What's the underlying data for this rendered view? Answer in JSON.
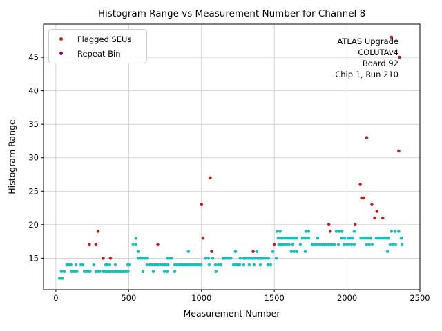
{
  "chart_data": {
    "type": "scatter",
    "title": "Histogram Range vs Measurement Number for Channel 8",
    "xlabel": "Measurement Number",
    "ylabel": "Histogram Range",
    "xlim": [
      -85,
      2500
    ],
    "ylim": [
      10.3,
      49.95
    ],
    "xticks": [
      0,
      500,
      1000,
      1500,
      2000,
      2500
    ],
    "yticks": [
      15,
      20,
      25,
      30,
      35,
      40,
      45
    ],
    "grid": true,
    "legend": {
      "position": "upper left",
      "items": [
        {
          "label": "Flagged SEUs",
          "color": "#b22222"
        },
        {
          "label": "Repeat Bin",
          "color": "#800080"
        }
      ]
    },
    "annotation": {
      "position": "upper right",
      "lines": [
        "ATLAS Upgrade",
        "COLUTAv4",
        "Board 92",
        "Chip 1, Run 210"
      ]
    },
    "colors": {
      "measurements": "#1cbcb8",
      "flagged": "#b22222",
      "repeat": "#800080",
      "grid": "#c9c9c9",
      "spine": "#000000",
      "text": "#000000"
    },
    "series": [
      {
        "name": "Measurements",
        "color": "#1cbcb8",
        "points": [
          [
            25,
            12
          ],
          [
            45,
            12
          ],
          [
            38,
            13
          ],
          [
            57,
            13
          ],
          [
            105,
            13
          ],
          [
            118,
            13
          ],
          [
            131,
            13
          ],
          [
            144,
            13
          ],
          [
            196,
            13
          ],
          [
            209,
            13
          ],
          [
            222,
            13
          ],
          [
            235,
            13
          ],
          [
            275,
            13
          ],
          [
            288,
            13
          ],
          [
            301,
            13
          ],
          [
            327,
            13
          ],
          [
            340,
            13
          ],
          [
            353,
            13
          ],
          [
            366,
            13
          ],
          [
            379,
            13
          ],
          [
            392,
            13
          ],
          [
            405,
            13
          ],
          [
            418,
            13
          ],
          [
            431,
            13
          ],
          [
            444,
            13
          ],
          [
            457,
            13
          ],
          [
            470,
            13
          ],
          [
            483,
            13
          ],
          [
            496,
            13
          ],
          [
            598,
            13
          ],
          [
            669,
            13
          ],
          [
            745,
            13
          ],
          [
            764,
            13
          ],
          [
            816,
            13
          ],
          [
            1100,
            13
          ],
          [
            76,
            14
          ],
          [
            90,
            14
          ],
          [
            104,
            14
          ],
          [
            138,
            14
          ],
          [
            171,
            14
          ],
          [
            185,
            14
          ],
          [
            261,
            14
          ],
          [
            342,
            14
          ],
          [
            351,
            14
          ],
          [
            370,
            14
          ],
          [
            408,
            14
          ],
          [
            493,
            14
          ],
          [
            503,
            14
          ],
          [
            626,
            14
          ],
          [
            645,
            14
          ],
          [
            660,
            14
          ],
          [
            674,
            14
          ],
          [
            688,
            14
          ],
          [
            702,
            14
          ],
          [
            716,
            14
          ],
          [
            730,
            14
          ],
          [
            744,
            14
          ],
          [
            758,
            14
          ],
          [
            770,
            14
          ],
          [
            816,
            14
          ],
          [
            830,
            14
          ],
          [
            844,
            14
          ],
          [
            858,
            14
          ],
          [
            872,
            14
          ],
          [
            886,
            14
          ],
          [
            900,
            14
          ],
          [
            914,
            14
          ],
          [
            928,
            14
          ],
          [
            942,
            14
          ],
          [
            956,
            14
          ],
          [
            970,
            14
          ],
          [
            984,
            14
          ],
          [
            998,
            14
          ],
          [
            1053,
            14
          ],
          [
            1096,
            14
          ],
          [
            1115,
            14
          ],
          [
            1134,
            14
          ],
          [
            1220,
            14
          ],
          [
            1234,
            14
          ],
          [
            1248,
            14
          ],
          [
            1262,
            14
          ],
          [
            1290,
            14
          ],
          [
            1328,
            14
          ],
          [
            1361,
            14
          ],
          [
            1404,
            14
          ],
          [
            1456,
            14
          ],
          [
            1475,
            14
          ],
          [
            565,
            15
          ],
          [
            580,
            15
          ],
          [
            595,
            15
          ],
          [
            610,
            15
          ],
          [
            630,
            15
          ],
          [
            768,
            15
          ],
          [
            781,
            15
          ],
          [
            794,
            15
          ],
          [
            1029,
            15
          ],
          [
            1048,
            15
          ],
          [
            1077,
            15
          ],
          [
            1150,
            15
          ],
          [
            1163,
            15
          ],
          [
            1176,
            15
          ],
          [
            1189,
            15
          ],
          [
            1202,
            15
          ],
          [
            1266,
            15
          ],
          [
            1290,
            15
          ],
          [
            1300,
            15
          ],
          [
            1313,
            15
          ],
          [
            1326,
            15
          ],
          [
            1339,
            15
          ],
          [
            1352,
            15
          ],
          [
            1365,
            15
          ],
          [
            1385,
            15
          ],
          [
            1398,
            15
          ],
          [
            1411,
            15
          ],
          [
            1424,
            15
          ],
          [
            1437,
            15
          ],
          [
            1461,
            15
          ],
          [
            1513,
            15
          ],
          [
            565,
            16
          ],
          [
            910,
            16
          ],
          [
            1233,
            16
          ],
          [
            1380,
            16
          ],
          [
            1490,
            16
          ],
          [
            1617,
            16
          ],
          [
            1636,
            16
          ],
          [
            1655,
            16
          ],
          [
            1712,
            16
          ],
          [
            2277,
            16
          ],
          [
            530,
            17
          ],
          [
            550,
            17
          ],
          [
            1532,
            17
          ],
          [
            1546,
            17
          ],
          [
            1560,
            17
          ],
          [
            1574,
            17
          ],
          [
            1588,
            17
          ],
          [
            1602,
            17
          ],
          [
            1627,
            17
          ],
          [
            1679,
            17
          ],
          [
            1760,
            17
          ],
          [
            1774,
            17
          ],
          [
            1788,
            17
          ],
          [
            1802,
            17
          ],
          [
            1816,
            17
          ],
          [
            1830,
            17
          ],
          [
            1844,
            17
          ],
          [
            1858,
            17
          ],
          [
            1872,
            17
          ],
          [
            1886,
            17
          ],
          [
            1900,
            17
          ],
          [
            1914,
            17
          ],
          [
            1940,
            17
          ],
          [
            1978,
            17
          ],
          [
            1997,
            17
          ],
          [
            2012,
            17
          ],
          [
            2030,
            17
          ],
          [
            2049,
            17
          ],
          [
            2134,
            17
          ],
          [
            2153,
            17
          ],
          [
            2172,
            17
          ],
          [
            2296,
            17
          ],
          [
            2315,
            17
          ],
          [
            2334,
            17
          ],
          [
            2377,
            17
          ],
          [
            550,
            18
          ],
          [
            1527,
            18
          ],
          [
            1551,
            18
          ],
          [
            1564,
            18
          ],
          [
            1577,
            18
          ],
          [
            1590,
            18
          ],
          [
            1603,
            18
          ],
          [
            1616,
            18
          ],
          [
            1629,
            18
          ],
          [
            1642,
            18
          ],
          [
            1655,
            18
          ],
          [
            1693,
            18
          ],
          [
            1712,
            18
          ],
          [
            1736,
            18
          ],
          [
            1798,
            18
          ],
          [
            1964,
            18
          ],
          [
            1983,
            18
          ],
          [
            2007,
            18
          ],
          [
            2021,
            18
          ],
          [
            2035,
            18
          ],
          [
            2095,
            18
          ],
          [
            2110,
            18
          ],
          [
            2125,
            18
          ],
          [
            2144,
            18
          ],
          [
            2163,
            18
          ],
          [
            2201,
            18
          ],
          [
            2220,
            18
          ],
          [
            2240,
            18
          ],
          [
            2254,
            18
          ],
          [
            2268,
            18
          ],
          [
            2282,
            18
          ],
          [
            2372,
            18
          ],
          [
            1520,
            19
          ],
          [
            1540,
            19
          ],
          [
            1717,
            19
          ],
          [
            1736,
            19
          ],
          [
            1926,
            19
          ],
          [
            1945,
            19
          ],
          [
            1964,
            19
          ],
          [
            2049,
            19
          ],
          [
            2305,
            19
          ],
          [
            2330,
            19
          ],
          [
            2355,
            19
          ]
        ]
      },
      {
        "name": "Flagged SEUs",
        "color": "#b22222",
        "points": [
          [
            230,
            17
          ],
          [
            275,
            17
          ],
          [
            290,
            19
          ],
          [
            325,
            15
          ],
          [
            375,
            15
          ],
          [
            700,
            17
          ],
          [
            1000,
            23
          ],
          [
            1010,
            18
          ],
          [
            1060,
            27
          ],
          [
            1070,
            16
          ],
          [
            1355,
            16
          ],
          [
            1500,
            17
          ],
          [
            1875,
            20
          ],
          [
            1885,
            19
          ],
          [
            2055,
            20
          ],
          [
            2090,
            26
          ],
          [
            2100,
            24
          ],
          [
            2115,
            24
          ],
          [
            2135,
            33
          ],
          [
            2170,
            23
          ],
          [
            2190,
            21
          ],
          [
            2205,
            22
          ],
          [
            2245,
            21
          ],
          [
            2305,
            48
          ],
          [
            2355,
            31
          ],
          [
            2360,
            45
          ]
        ]
      },
      {
        "name": "Repeat Bin",
        "color": "#800080",
        "points": []
      }
    ]
  }
}
